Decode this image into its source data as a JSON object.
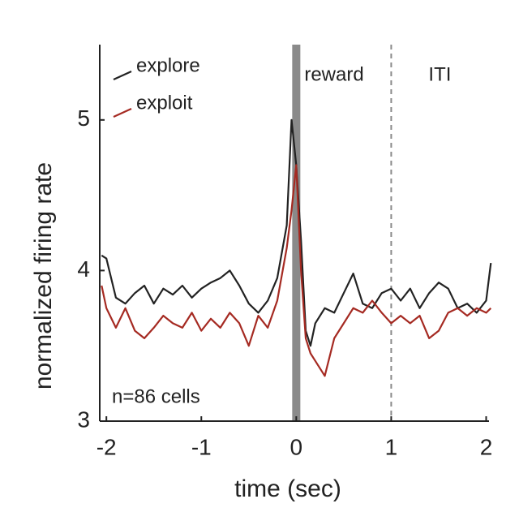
{
  "chart_data": {
    "type": "line",
    "xlabel": "time (sec)",
    "ylabel": "normalized firing rate",
    "x": [
      -2.05,
      -2,
      -1.9,
      -1.8,
      -1.7,
      -1.6,
      -1.5,
      -1.4,
      -1.3,
      -1.2,
      -1.1,
      -1,
      -0.9,
      -0.8,
      -0.7,
      -0.6,
      -0.5,
      -0.4,
      -0.3,
      -0.2,
      -0.1,
      -0.05,
      0,
      0.05,
      0.1,
      0.15,
      0.2,
      0.3,
      0.4,
      0.5,
      0.6,
      0.7,
      0.8,
      0.9,
      1,
      1.1,
      1.2,
      1.3,
      1.4,
      1.5,
      1.6,
      1.7,
      1.8,
      1.9,
      2,
      2.05
    ],
    "series": [
      {
        "name": "explore",
        "color": "#222222",
        "values": [
          4.1,
          4.08,
          3.82,
          3.78,
          3.85,
          3.9,
          3.78,
          3.88,
          3.84,
          3.9,
          3.82,
          3.88,
          3.92,
          3.95,
          4.0,
          3.9,
          3.78,
          3.72,
          3.8,
          3.95,
          4.3,
          5.0,
          4.7,
          4.2,
          3.6,
          3.5,
          3.65,
          3.75,
          3.72,
          3.85,
          3.98,
          3.78,
          3.75,
          3.85,
          3.88,
          3.8,
          3.88,
          3.75,
          3.85,
          3.92,
          3.88,
          3.75,
          3.78,
          3.72,
          3.8,
          4.05
        ]
      },
      {
        "name": "exploit",
        "color": "#a52a22",
        "values": [
          3.9,
          3.75,
          3.62,
          3.75,
          3.6,
          3.55,
          3.62,
          3.7,
          3.65,
          3.62,
          3.72,
          3.6,
          3.68,
          3.62,
          3.72,
          3.65,
          3.5,
          3.7,
          3.62,
          3.8,
          4.15,
          4.4,
          4.7,
          4.0,
          3.55,
          3.45,
          3.4,
          3.3,
          3.55,
          3.65,
          3.75,
          3.72,
          3.8,
          3.72,
          3.65,
          3.7,
          3.65,
          3.7,
          3.55,
          3.6,
          3.72,
          3.75,
          3.7,
          3.75,
          3.72,
          3.75
        ]
      }
    ],
    "xlim": [
      -2.07,
      2.03
    ],
    "ylim": [
      3,
      5.5
    ],
    "xticks": [
      -2,
      -1,
      0,
      1,
      2
    ],
    "yticks": [
      3,
      4,
      5
    ],
    "markers": [
      {
        "x": 0,
        "color": "#8a8a8a",
        "style": "solid"
      },
      {
        "x": 1,
        "color": "#8a8a8a",
        "style": "dashed"
      }
    ],
    "annotations": [
      "reward",
      "ITI",
      "n=86 cells"
    ],
    "legend": "upper left"
  }
}
